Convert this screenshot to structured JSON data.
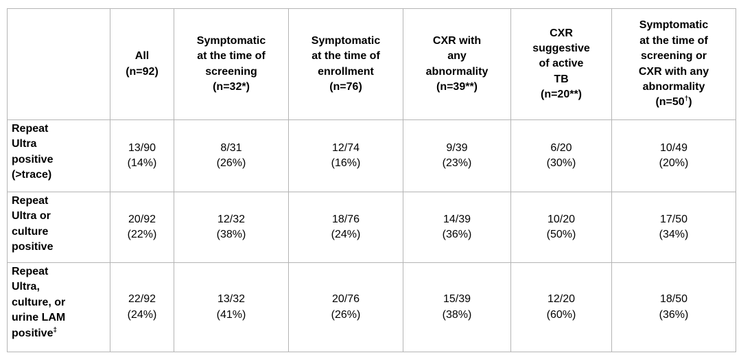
{
  "table": {
    "columns": [
      "",
      "All\n(n=92)",
      "Symptomatic\nat the time of\nscreening\n(n=32*)",
      "Symptomatic\nat the time of\nenrollment\n(n=76)",
      "CXR with\nany\nabnormality\n(n=39**)",
      "CXR\nsuggestive\nof active\nTB\n(n=20**)",
      "Symptomatic\nat the time of\nscreening or\nCXR with any\nabnormality\n(n=50†)"
    ],
    "rows": [
      {
        "label": "Repeat\nUltra\npositive\n(>trace)",
        "cells": [
          "13/90\n(14%)",
          "8/31\n(26%)",
          "12/74\n(16%)",
          "9/39\n(23%)",
          "6/20\n(30%)",
          "10/49\n(20%)"
        ]
      },
      {
        "label": "Repeat\nUltra or\nculture\npositive",
        "cells": [
          "20/92\n(22%)",
          "12/32\n(38%)",
          "18/76\n(24%)",
          "14/39\n(36%)",
          "10/20\n(50%)",
          "17/50\n(34%)"
        ]
      },
      {
        "label": "Repeat\nUltra,\nculture, or\nurine LAM\npositive‡",
        "cells": [
          "22/92\n(24%)",
          "13/32\n(41%)",
          "20/76\n(26%)",
          "15/39\n(38%)",
          "12/20\n(60%)",
          "18/50\n(36%)"
        ]
      }
    ]
  },
  "colors": {
    "background": "#ffffff",
    "border": "#b4b4b4",
    "text": "#000000"
  }
}
